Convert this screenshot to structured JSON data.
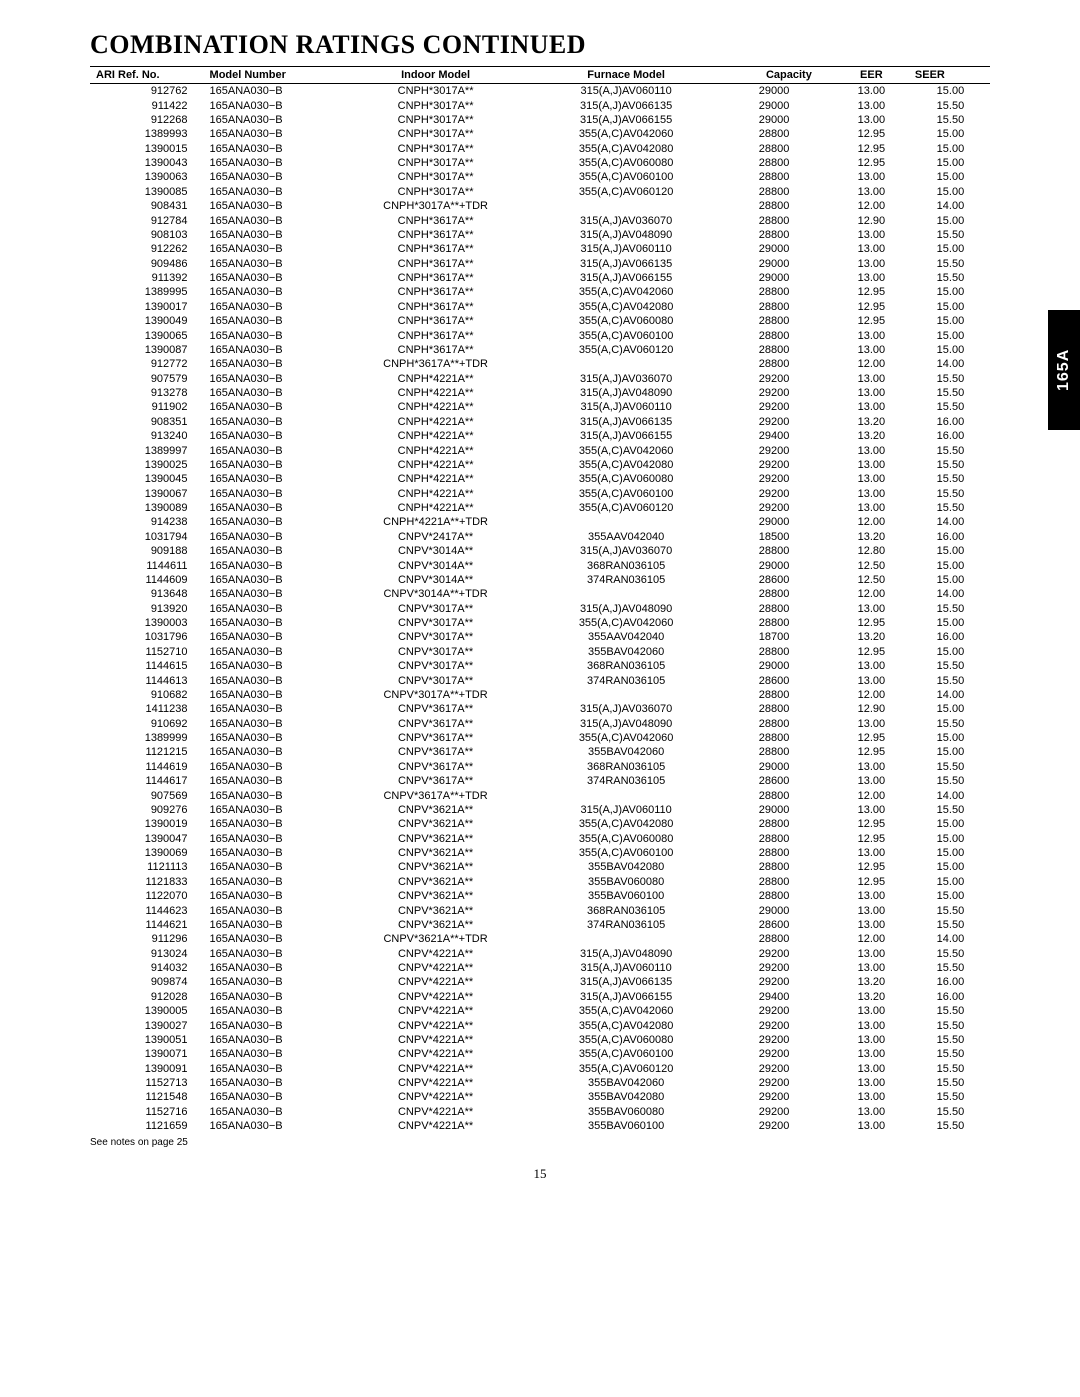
{
  "title": "COMBINATION RATINGS CONTINUED",
  "side_tab": "165A",
  "footnote": "See notes on page 25",
  "page_number": "15",
  "table": {
    "columns": [
      "ARI Ref. No.",
      "Model Number",
      "Indoor Model",
      "Furnace Model",
      "Capacity",
      "EER",
      "SEER"
    ],
    "rows": [
      [
        "912762",
        "165ANA030−B",
        "CNPH*3017A**",
        "315(A,J)AV060110",
        "29000",
        "13.00",
        "15.00"
      ],
      [
        "911422",
        "165ANA030−B",
        "CNPH*3017A**",
        "315(A,J)AV066135",
        "29000",
        "13.00",
        "15.50"
      ],
      [
        "912268",
        "165ANA030−B",
        "CNPH*3017A**",
        "315(A,J)AV066155",
        "29000",
        "13.00",
        "15.50"
      ],
      [
        "1389993",
        "165ANA030−B",
        "CNPH*3017A**",
        "355(A,C)AV042060",
        "28800",
        "12.95",
        "15.00"
      ],
      [
        "1390015",
        "165ANA030−B",
        "CNPH*3017A**",
        "355(A,C)AV042080",
        "28800",
        "12.95",
        "15.00"
      ],
      [
        "1390043",
        "165ANA030−B",
        "CNPH*3017A**",
        "355(A,C)AV060080",
        "28800",
        "12.95",
        "15.00"
      ],
      [
        "1390063",
        "165ANA030−B",
        "CNPH*3017A**",
        "355(A,C)AV060100",
        "28800",
        "13.00",
        "15.00"
      ],
      [
        "1390085",
        "165ANA030−B",
        "CNPH*3017A**",
        "355(A,C)AV060120",
        "28800",
        "13.00",
        "15.00"
      ],
      [
        "908431",
        "165ANA030−B",
        "CNPH*3017A**+TDR",
        "",
        "28800",
        "12.00",
        "14.00"
      ],
      [
        "912784",
        "165ANA030−B",
        "CNPH*3617A**",
        "315(A,J)AV036070",
        "28800",
        "12.90",
        "15.00"
      ],
      [
        "908103",
        "165ANA030−B",
        "CNPH*3617A**",
        "315(A,J)AV048090",
        "28800",
        "13.00",
        "15.50"
      ],
      [
        "912262",
        "165ANA030−B",
        "CNPH*3617A**",
        "315(A,J)AV060110",
        "29000",
        "13.00",
        "15.00"
      ],
      [
        "909486",
        "165ANA030−B",
        "CNPH*3617A**",
        "315(A,J)AV066135",
        "29000",
        "13.00",
        "15.50"
      ],
      [
        "911392",
        "165ANA030−B",
        "CNPH*3617A**",
        "315(A,J)AV066155",
        "29000",
        "13.00",
        "15.50"
      ],
      [
        "1389995",
        "165ANA030−B",
        "CNPH*3617A**",
        "355(A,C)AV042060",
        "28800",
        "12.95",
        "15.00"
      ],
      [
        "1390017",
        "165ANA030−B",
        "CNPH*3617A**",
        "355(A,C)AV042080",
        "28800",
        "12.95",
        "15.00"
      ],
      [
        "1390049",
        "165ANA030−B",
        "CNPH*3617A**",
        "355(A,C)AV060080",
        "28800",
        "12.95",
        "15.00"
      ],
      [
        "1390065",
        "165ANA030−B",
        "CNPH*3617A**",
        "355(A,C)AV060100",
        "28800",
        "13.00",
        "15.00"
      ],
      [
        "1390087",
        "165ANA030−B",
        "CNPH*3617A**",
        "355(A,C)AV060120",
        "28800",
        "13.00",
        "15.00"
      ],
      [
        "912772",
        "165ANA030−B",
        "CNPH*3617A**+TDR",
        "",
        "28800",
        "12.00",
        "14.00"
      ],
      [
        "907579",
        "165ANA030−B",
        "CNPH*4221A**",
        "315(A,J)AV036070",
        "29200",
        "13.00",
        "15.50"
      ],
      [
        "913278",
        "165ANA030−B",
        "CNPH*4221A**",
        "315(A,J)AV048090",
        "29200",
        "13.00",
        "15.50"
      ],
      [
        "911902",
        "165ANA030−B",
        "CNPH*4221A**",
        "315(A,J)AV060110",
        "29200",
        "13.00",
        "15.50"
      ],
      [
        "908351",
        "165ANA030−B",
        "CNPH*4221A**",
        "315(A,J)AV066135",
        "29200",
        "13.20",
        "16.00"
      ],
      [
        "913240",
        "165ANA030−B",
        "CNPH*4221A**",
        "315(A,J)AV066155",
        "29400",
        "13.20",
        "16.00"
      ],
      [
        "1389997",
        "165ANA030−B",
        "CNPH*4221A**",
        "355(A,C)AV042060",
        "29200",
        "13.00",
        "15.50"
      ],
      [
        "1390025",
        "165ANA030−B",
        "CNPH*4221A**",
        "355(A,C)AV042080",
        "29200",
        "13.00",
        "15.50"
      ],
      [
        "1390045",
        "165ANA030−B",
        "CNPH*4221A**",
        "355(A,C)AV060080",
        "29200",
        "13.00",
        "15.50"
      ],
      [
        "1390067",
        "165ANA030−B",
        "CNPH*4221A**",
        "355(A,C)AV060100",
        "29200",
        "13.00",
        "15.50"
      ],
      [
        "1390089",
        "165ANA030−B",
        "CNPH*4221A**",
        "355(A,C)AV060120",
        "29200",
        "13.00",
        "15.50"
      ],
      [
        "914238",
        "165ANA030−B",
        "CNPH*4221A**+TDR",
        "",
        "29000",
        "12.00",
        "14.00"
      ],
      [
        "1031794",
        "165ANA030−B",
        "CNPV*2417A**",
        "355AAV042040",
        "18500",
        "13.20",
        "16.00"
      ],
      [
        "909188",
        "165ANA030−B",
        "CNPV*3014A**",
        "315(A,J)AV036070",
        "28800",
        "12.80",
        "15.00"
      ],
      [
        "1144611",
        "165ANA030−B",
        "CNPV*3014A**",
        "368RAN036105",
        "29000",
        "12.50",
        "15.00"
      ],
      [
        "1144609",
        "165ANA030−B",
        "CNPV*3014A**",
        "374RAN036105",
        "28600",
        "12.50",
        "15.00"
      ],
      [
        "913648",
        "165ANA030−B",
        "CNPV*3014A**+TDR",
        "",
        "28800",
        "12.00",
        "14.00"
      ],
      [
        "913920",
        "165ANA030−B",
        "CNPV*3017A**",
        "315(A,J)AV048090",
        "28800",
        "13.00",
        "15.50"
      ],
      [
        "1390003",
        "165ANA030−B",
        "CNPV*3017A**",
        "355(A,C)AV042060",
        "28800",
        "12.95",
        "15.00"
      ],
      [
        "1031796",
        "165ANA030−B",
        "CNPV*3017A**",
        "355AAV042040",
        "18700",
        "13.20",
        "16.00"
      ],
      [
        "1152710",
        "165ANA030−B",
        "CNPV*3017A**",
        "355BAV042060",
        "28800",
        "12.95",
        "15.00"
      ],
      [
        "1144615",
        "165ANA030−B",
        "CNPV*3017A**",
        "368RAN036105",
        "29000",
        "13.00",
        "15.50"
      ],
      [
        "1144613",
        "165ANA030−B",
        "CNPV*3017A**",
        "374RAN036105",
        "28600",
        "13.00",
        "15.50"
      ],
      [
        "910682",
        "165ANA030−B",
        "CNPV*3017A**+TDR",
        "",
        "28800",
        "12.00",
        "14.00"
      ],
      [
        "1411238",
        "165ANA030−B",
        "CNPV*3617A**",
        "315(A,J)AV036070",
        "28800",
        "12.90",
        "15.00"
      ],
      [
        "910692",
        "165ANA030−B",
        "CNPV*3617A**",
        "315(A,J)AV048090",
        "28800",
        "13.00",
        "15.50"
      ],
      [
        "1389999",
        "165ANA030−B",
        "CNPV*3617A**",
        "355(A,C)AV042060",
        "28800",
        "12.95",
        "15.00"
      ],
      [
        "1121215",
        "165ANA030−B",
        "CNPV*3617A**",
        "355BAV042060",
        "28800",
        "12.95",
        "15.00"
      ],
      [
        "1144619",
        "165ANA030−B",
        "CNPV*3617A**",
        "368RAN036105",
        "29000",
        "13.00",
        "15.50"
      ],
      [
        "1144617",
        "165ANA030−B",
        "CNPV*3617A**",
        "374RAN036105",
        "28600",
        "13.00",
        "15.50"
      ],
      [
        "907569",
        "165ANA030−B",
        "CNPV*3617A**+TDR",
        "",
        "28800",
        "12.00",
        "14.00"
      ],
      [
        "909276",
        "165ANA030−B",
        "CNPV*3621A**",
        "315(A,J)AV060110",
        "29000",
        "13.00",
        "15.50"
      ],
      [
        "1390019",
        "165ANA030−B",
        "CNPV*3621A**",
        "355(A,C)AV042080",
        "28800",
        "12.95",
        "15.00"
      ],
      [
        "1390047",
        "165ANA030−B",
        "CNPV*3621A**",
        "355(A,C)AV060080",
        "28800",
        "12.95",
        "15.00"
      ],
      [
        "1390069",
        "165ANA030−B",
        "CNPV*3621A**",
        "355(A,C)AV060100",
        "28800",
        "13.00",
        "15.00"
      ],
      [
        "1121113",
        "165ANA030−B",
        "CNPV*3621A**",
        "355BAV042080",
        "28800",
        "12.95",
        "15.00"
      ],
      [
        "1121833",
        "165ANA030−B",
        "CNPV*3621A**",
        "355BAV060080",
        "28800",
        "12.95",
        "15.00"
      ],
      [
        "1122070",
        "165ANA030−B",
        "CNPV*3621A**",
        "355BAV060100",
        "28800",
        "13.00",
        "15.00"
      ],
      [
        "1144623",
        "165ANA030−B",
        "CNPV*3621A**",
        "368RAN036105",
        "29000",
        "13.00",
        "15.50"
      ],
      [
        "1144621",
        "165ANA030−B",
        "CNPV*3621A**",
        "374RAN036105",
        "28600",
        "13.00",
        "15.50"
      ],
      [
        "911296",
        "165ANA030−B",
        "CNPV*3621A**+TDR",
        "",
        "28800",
        "12.00",
        "14.00"
      ],
      [
        "913024",
        "165ANA030−B",
        "CNPV*4221A**",
        "315(A,J)AV048090",
        "29200",
        "13.00",
        "15.50"
      ],
      [
        "914032",
        "165ANA030−B",
        "CNPV*4221A**",
        "315(A,J)AV060110",
        "29200",
        "13.00",
        "15.50"
      ],
      [
        "909874",
        "165ANA030−B",
        "CNPV*4221A**",
        "315(A,J)AV066135",
        "29200",
        "13.20",
        "16.00"
      ],
      [
        "912028",
        "165ANA030−B",
        "CNPV*4221A**",
        "315(A,J)AV066155",
        "29400",
        "13.20",
        "16.00"
      ],
      [
        "1390005",
        "165ANA030−B",
        "CNPV*4221A**",
        "355(A,C)AV042060",
        "29200",
        "13.00",
        "15.50"
      ],
      [
        "1390027",
        "165ANA030−B",
        "CNPV*4221A**",
        "355(A,C)AV042080",
        "29200",
        "13.00",
        "15.50"
      ],
      [
        "1390051",
        "165ANA030−B",
        "CNPV*4221A**",
        "355(A,C)AV060080",
        "29200",
        "13.00",
        "15.50"
      ],
      [
        "1390071",
        "165ANA030−B",
        "CNPV*4221A**",
        "355(A,C)AV060100",
        "29200",
        "13.00",
        "15.50"
      ],
      [
        "1390091",
        "165ANA030−B",
        "CNPV*4221A**",
        "355(A,C)AV060120",
        "29200",
        "13.00",
        "15.50"
      ],
      [
        "1152713",
        "165ANA030−B",
        "CNPV*4221A**",
        "355BAV042060",
        "29200",
        "13.00",
        "15.50"
      ],
      [
        "1121548",
        "165ANA030−B",
        "CNPV*4221A**",
        "355BAV042080",
        "29200",
        "13.00",
        "15.50"
      ],
      [
        "1152716",
        "165ANA030−B",
        "CNPV*4221A**",
        "355BAV060080",
        "29200",
        "13.00",
        "15.50"
      ],
      [
        "1121659",
        "165ANA030−B",
        "CNPV*4221A**",
        "355BAV060100",
        "29200",
        "13.00",
        "15.50"
      ]
    ]
  }
}
